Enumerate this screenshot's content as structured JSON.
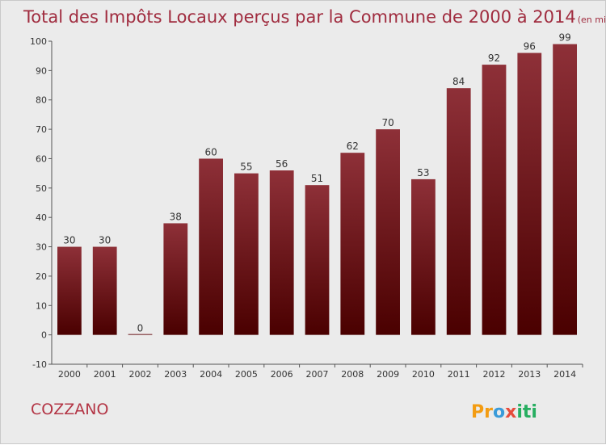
{
  "chart_data": {
    "type": "bar",
    "title": "Total des Impôts Locaux perçus par la Commune de 2000 à 2014",
    "unit": "(en milliers d'€)",
    "categories": [
      "2000",
      "2001",
      "2002",
      "2003",
      "2004",
      "2005",
      "2006",
      "2007",
      "2008",
      "2009",
      "2010",
      "2011",
      "2012",
      "2013",
      "2014"
    ],
    "values": [
      30,
      30,
      0,
      38,
      60,
      55,
      56,
      51,
      62,
      70,
      53,
      84,
      92,
      96,
      99
    ],
    "ylim": [
      -10,
      100
    ],
    "yticks": [
      -10,
      0,
      10,
      20,
      30,
      40,
      50,
      60,
      70,
      80,
      90,
      100
    ],
    "grid": false,
    "bar_color_top": "#8e3038",
    "bar_color_bottom": "#4a0000"
  },
  "commune": "COZZANO",
  "brand": {
    "letters": [
      "P",
      "r",
      "o",
      "x",
      "i",
      "t",
      "i"
    ],
    "colors": [
      "#f39c12",
      "#f39c12",
      "#3a9bd9",
      "#e74c3c",
      "#27ae60",
      "#27ae60",
      "#27ae60"
    ]
  }
}
